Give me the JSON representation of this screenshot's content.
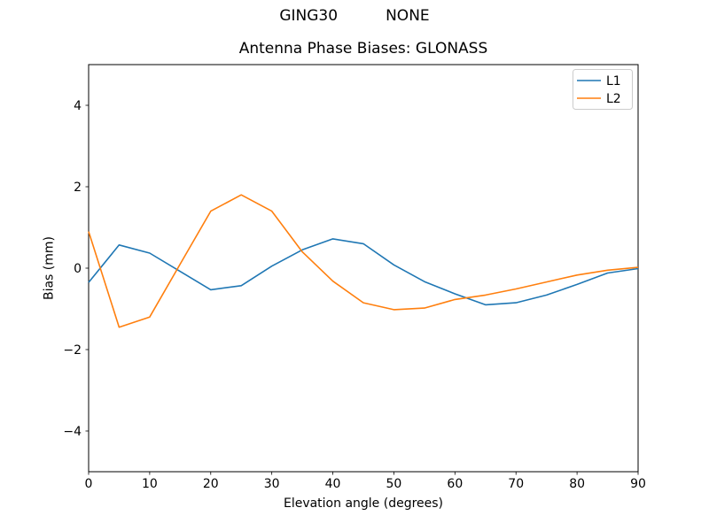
{
  "chart_data": {
    "type": "line",
    "suptitle": "GING30          NONE",
    "title": "Antenna Phase Biases: GLONASS",
    "xlabel": "Elevation angle (degrees)",
    "ylabel": "Bias (mm)",
    "xlim": [
      0,
      90
    ],
    "ylim": [
      -5,
      5
    ],
    "xticks": [
      0,
      10,
      20,
      30,
      40,
      50,
      60,
      70,
      80,
      90
    ],
    "yticks": [
      -4,
      -2,
      0,
      2,
      4
    ],
    "grid": false,
    "legend_position": "upper right",
    "x": [
      0,
      5,
      10,
      15,
      20,
      25,
      30,
      35,
      40,
      45,
      50,
      55,
      60,
      65,
      70,
      75,
      80,
      85,
      90
    ],
    "series": [
      {
        "name": "L1",
        "color": "#1f77b4",
        "values": [
          -0.35,
          0.57,
          0.37,
          -0.08,
          -0.53,
          -0.43,
          0.05,
          0.45,
          0.72,
          0.6,
          0.08,
          -0.33,
          -0.63,
          -0.9,
          -0.85,
          -0.66,
          -0.4,
          -0.12,
          -0.01
        ]
      },
      {
        "name": "L2",
        "color": "#ff7f0e",
        "values": [
          0.9,
          -1.45,
          -1.2,
          0.1,
          1.4,
          1.8,
          1.4,
          0.4,
          -0.32,
          -0.85,
          -1.02,
          -0.98,
          -0.77,
          -0.66,
          -0.51,
          -0.34,
          -0.17,
          -0.05,
          0.02
        ]
      }
    ],
    "legend_frame_color": "#cccccc",
    "axes_color": "#000000",
    "background_color": "#ffffff"
  }
}
